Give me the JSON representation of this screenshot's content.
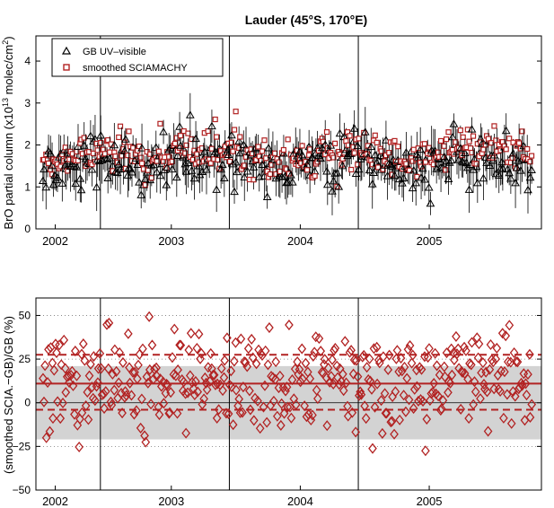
{
  "chart_data": [
    {
      "type": "scatter",
      "title": "Lauder (45°S, 170°E)",
      "ylabel": "BrO partial column (x10",
      "ylabel_exponent": "13",
      "ylabel_unit": " molec/cm",
      "ylabel_unit_exponent": "2",
      "ylabel_close": ")",
      "xlim": [
        2002.0,
        2005.92
      ],
      "ylim": [
        0,
        4.6
      ],
      "xtick_labels": [
        "2002",
        "2003",
        "2004",
        "2005"
      ],
      "xtick_values": [
        2002.15,
        2003.05,
        2004.05,
        2005.05
      ],
      "yticks": [
        0,
        1,
        2,
        3,
        4
      ],
      "vertical_lines": [
        2002.5,
        2003.5,
        2004.5
      ],
      "grid": "none",
      "legend_position": "top-left",
      "series": [
        {
          "name": "GB UV–visible",
          "marker": "triangle",
          "color": "#000000",
          "mean_level": 1.55,
          "spread": 0.3,
          "start": 2002.05,
          "end": 2005.85
        },
        {
          "name": "smoothed SCIAMACHY",
          "marker": "square",
          "color": "#b22222",
          "mean_level": 1.75,
          "spread": 0.25,
          "start": 2002.05,
          "end": 2005.85
        }
      ]
    },
    {
      "type": "scatter",
      "ylabel": "(smoothed SCIA.−GB)/GB (%)",
      "xlim": [
        2002.0,
        2005.92
      ],
      "ylim": [
        -50,
        60
      ],
      "xtick_labels": [
        "2002",
        "2003",
        "2004",
        "2005"
      ],
      "xtick_values": [
        2002.15,
        2003.05,
        2004.05,
        2005.05
      ],
      "ytick_labels": [
        "50",
        "25",
        "0",
        "−25",
        "−50"
      ],
      "yticks": [
        50,
        25,
        0,
        -25,
        -50
      ],
      "vertical_lines": [
        2002.5,
        2003.5,
        2004.5
      ],
      "grid": "dotted horizontal",
      "shaded_band": [
        -21,
        21
      ],
      "mean_line": 11,
      "std_lines": [
        27.5,
        -4
      ],
      "marker": "diamond",
      "color": "#b22222",
      "band_color": "#d3d3d3"
    }
  ]
}
